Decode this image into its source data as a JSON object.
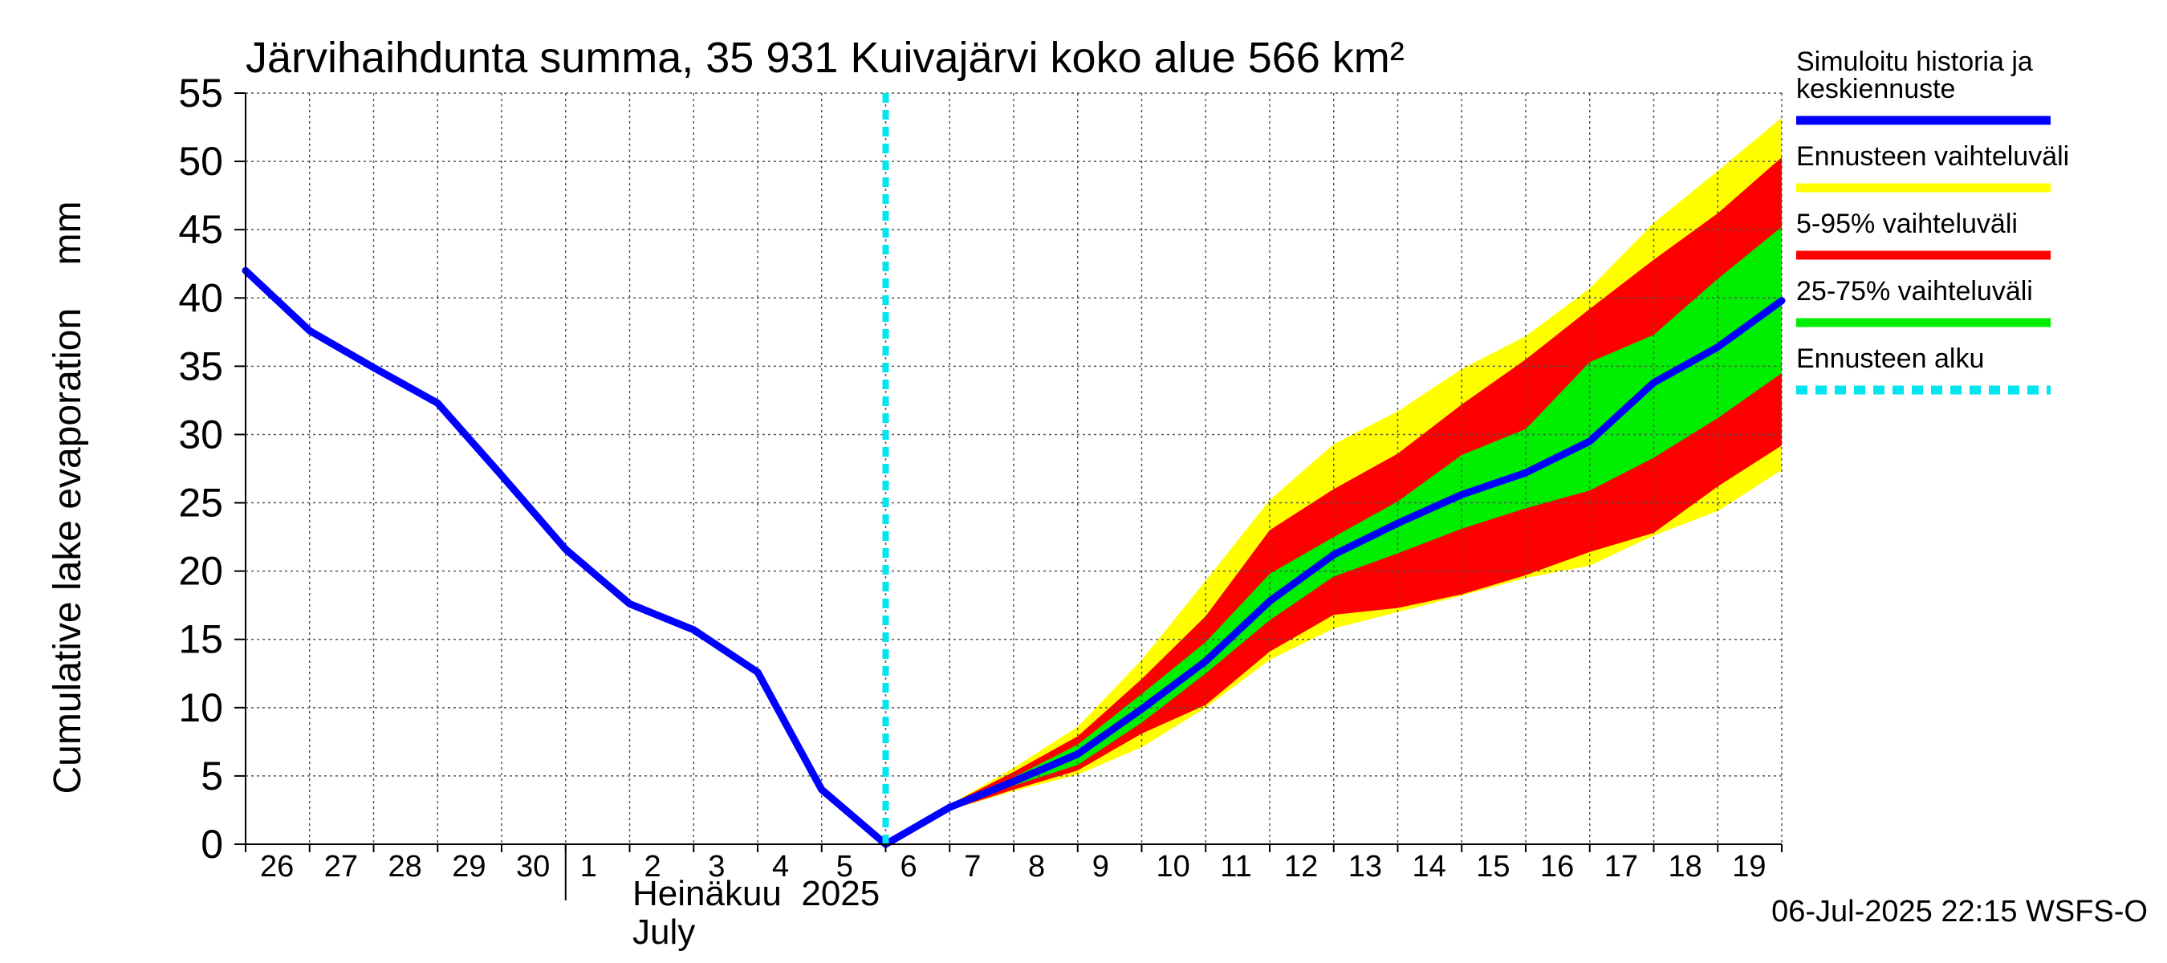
{
  "chart_data": {
    "type": "area",
    "title": "Järvihaihdunta summa, 35 931 Kuivajärvi koko alue 566 km²",
    "ylabel": "Cumulative lake evaporation    mm",
    "xlabel_month_fi": "Heinäkuu  2025",
    "xlabel_month_en": "July",
    "ylim": [
      0,
      55
    ],
    "yticks": [
      0,
      5,
      10,
      15,
      20,
      25,
      30,
      35,
      40,
      45,
      50,
      55
    ],
    "xlim": [
      0,
      24
    ],
    "x_tick_labels": [
      "26",
      "27",
      "28",
      "29",
      "30",
      "1",
      "2",
      "3",
      "4",
      "5",
      "6",
      "7",
      "8",
      "9",
      "10",
      "11",
      "12",
      "13",
      "14",
      "15",
      "16",
      "17",
      "18",
      "19"
    ],
    "month_boundary_x": 5,
    "forecast_start_x": 10,
    "footer": "06-Jul-2025 22:15 WSFS-O",
    "legend": [
      {
        "id": "median",
        "label_lines": [
          "Simuloitu historia ja",
          "keskiennuste"
        ],
        "color": "#0000ff",
        "style": "solid"
      },
      {
        "id": "range",
        "label_lines": [
          "Ennusteen vaihteluväli"
        ],
        "color": "#ffff00",
        "style": "solid"
      },
      {
        "id": "p5_95",
        "label_lines": [
          "5-95% vaihteluväli"
        ],
        "color": "#ff0000",
        "style": "solid"
      },
      {
        "id": "p25_75",
        "label_lines": [
          "25-75% vaihteluväli"
        ],
        "color": "#00ee00",
        "style": "solid"
      },
      {
        "id": "start",
        "label_lines": [
          "Ennusteen alku"
        ],
        "color": "#00e5ee",
        "style": "dashed"
      }
    ],
    "history": {
      "x": [
        0,
        1,
        2,
        3,
        4,
        5,
        6,
        7,
        8,
        9,
        10
      ],
      "y": [
        42,
        37.6,
        34.9,
        32.3,
        27,
        21.6,
        17.6,
        15.7,
        12.6,
        4,
        0
      ]
    },
    "forecast": {
      "x": [
        10,
        11,
        12,
        13,
        14,
        15,
        16,
        17,
        18,
        19,
        20,
        21,
        22,
        23,
        24
      ],
      "median": [
        0,
        2.7,
        4.6,
        6.6,
        9.9,
        13.4,
        17.8,
        21.2,
        23.5,
        25.6,
        27.2,
        29.5,
        33.8,
        36.4,
        39.8
      ],
      "min": [
        0,
        2.5,
        3.9,
        5.1,
        7.1,
        10,
        13.5,
        15.8,
        17,
        18.2,
        19.5,
        20.4,
        22.6,
        24.4,
        27.4
      ],
      "max": [
        0,
        2.9,
        5.6,
        8.6,
        13.5,
        19.3,
        25.2,
        29.3,
        31.7,
        34.8,
        37.2,
        40.7,
        45.5,
        49.3,
        53.2
      ],
      "p5": [
        0,
        2.5,
        4,
        5.4,
        8.1,
        10.2,
        14.1,
        16.8,
        17.3,
        18.3,
        19.7,
        21.4,
        22.8,
        26.2,
        29.2
      ],
      "p95": [
        0,
        2.9,
        5.3,
        7.9,
        12.1,
        16.7,
        23,
        26,
        28.6,
        32.2,
        35.5,
        39.2,
        42.8,
        46.2,
        50.3
      ],
      "p25": [
        0,
        2.6,
        4.3,
        5.8,
        8.9,
        12.5,
        16.4,
        19.6,
        21.3,
        23.1,
        24.6,
        25.9,
        28.3,
        31.2,
        34.5
      ],
      "p75": [
        0,
        2.8,
        4.9,
        7.3,
        11,
        14.8,
        19.8,
        22.5,
        25.1,
        28.5,
        30.4,
        35.3,
        37.3,
        41.4,
        45.2
      ]
    }
  }
}
